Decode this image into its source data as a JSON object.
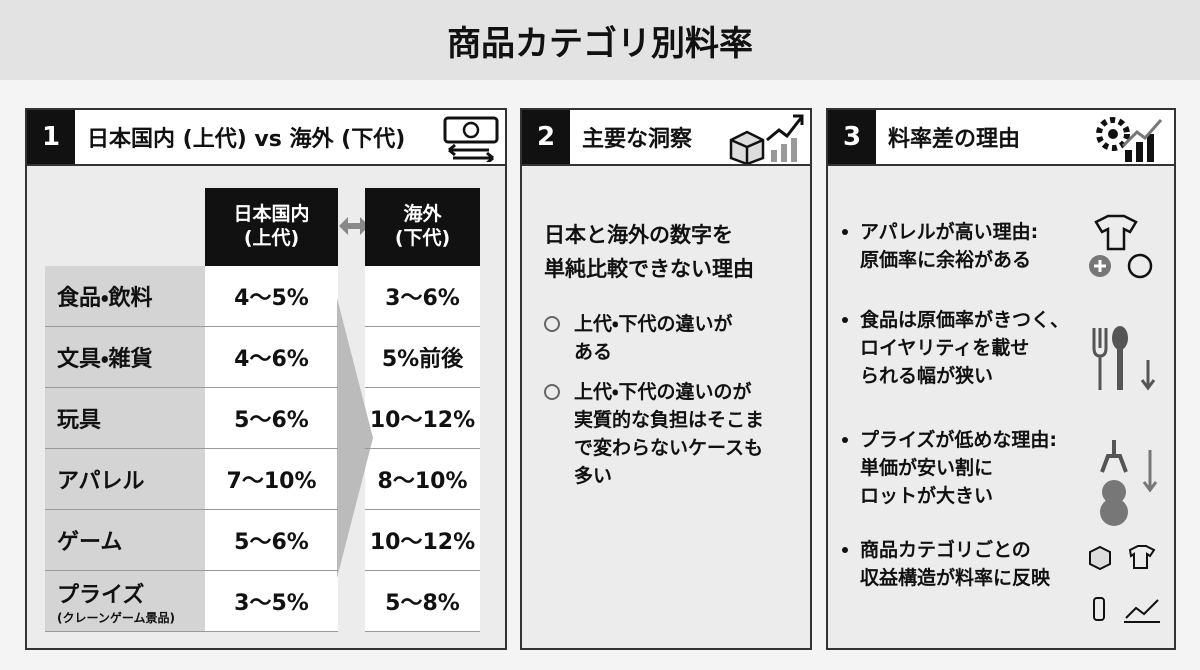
{
  "title": "商品カテゴリ別料率",
  "panels": [
    {
      "number": "1",
      "title": "日本国内 (上代) vs 海外 (下代)",
      "table": {
        "columns": [
          {
            "name": "日本国内",
            "sub": "(上代)"
          },
          {
            "name": "海外",
            "sub": "(下代)"
          }
        ],
        "rows": [
          {
            "label": "食品・飲料",
            "cells": [
              "4〜5%",
              "3〜6%"
            ]
          },
          {
            "label": "文具・雑貨",
            "cells": [
              "4〜6%",
              "5%前後"
            ]
          },
          {
            "label": "玩具",
            "cells": [
              "5〜6%",
              "10〜12%"
            ]
          },
          {
            "label": "アパレル",
            "cells": [
              "7〜10%",
              "8〜10%"
            ]
          },
          {
            "label": "ゲーム",
            "cells": [
              "5〜6%",
              "10〜12%"
            ]
          },
          {
            "label": "プライズ",
            "sublabel": "(クレーンゲーム景品)",
            "cells": [
              "3〜5%",
              "5〜8%"
            ]
          }
        ]
      }
    },
    {
      "number": "2",
      "title": "主要な洞察",
      "heading": [
        "日本と海外の数字を",
        "単純比較できない理由"
      ],
      "items": [
        [
          "上代・下代の違いが",
          "ある"
        ],
        [
          "上代・下代の違いのが",
          "実質的な負担はそこま",
          "で変わらないケースも",
          "多い"
        ]
      ]
    },
    {
      "number": "3",
      "title": "料率差の理由",
      "items": [
        [
          "アパレルが高い理由:",
          "原価率に余裕がある"
        ],
        [
          "食品は原価率がきつく、",
          "ロイヤリティを載せ",
          "られる幅が狭い"
        ],
        [
          "プライズが低めな理由:",
          "単価が安い割に",
          "ロットが大きい"
        ],
        [
          "商品カテゴリごとの",
          "収益構造が料率に反映"
        ]
      ]
    }
  ]
}
